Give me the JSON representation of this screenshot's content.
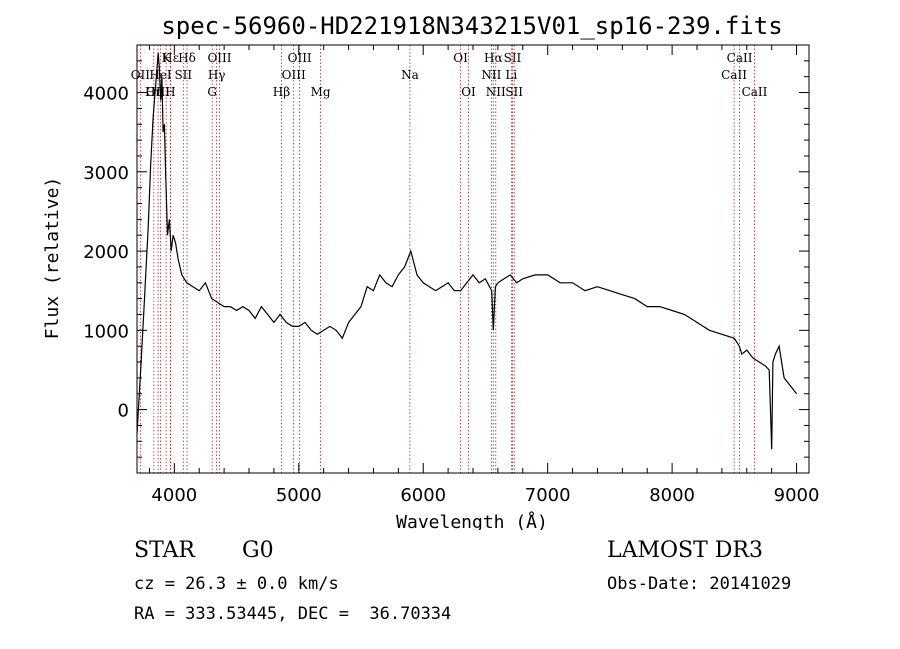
{
  "chart_data": {
    "type": "line",
    "title": "spec-56960-HD221918N343215V01_sp16-239.fits",
    "xlabel": "Wavelength (Å)",
    "ylabel": "Flux (relative)",
    "xlim": [
      3700,
      9100
    ],
    "ylim": [
      -800,
      4600
    ],
    "xticks": [
      4000,
      5000,
      6000,
      7000,
      8000,
      9000
    ],
    "yticks": [
      0,
      1000,
      2000,
      3000,
      4000
    ],
    "series": [
      {
        "x": [
          3700,
          3730,
          3760,
          3790,
          3810,
          3830,
          3850,
          3870,
          3880,
          3890,
          3900,
          3910,
          3920,
          3930,
          3945,
          3960,
          3975,
          3990,
          4010,
          4030,
          4060,
          4100,
          4150,
          4200,
          4250,
          4300,
          4350,
          4400,
          4450,
          4500,
          4550,
          4600,
          4650,
          4700,
          4750,
          4800,
          4850,
          4900,
          4950,
          5000,
          5050,
          5100,
          5150,
          5200,
          5250,
          5300,
          5350,
          5400,
          5450,
          5500,
          5550,
          5600,
          5650,
          5700,
          5750,
          5800,
          5850,
          5900,
          5950,
          6000,
          6050,
          6100,
          6150,
          6200,
          6250,
          6300,
          6350,
          6400,
          6450,
          6500,
          6550,
          6563,
          6580,
          6600,
          6650,
          6700,
          6750,
          6800,
          6900,
          7000,
          7100,
          7200,
          7300,
          7400,
          7500,
          7600,
          7700,
          7800,
          7900,
          8000,
          8100,
          8200,
          8300,
          8400,
          8500,
          8540,
          8560,
          8600,
          8650,
          8700,
          8750,
          8780,
          8800,
          8810,
          8830,
          8860,
          8900,
          8950,
          9000
        ],
        "y": [
          -300,
          500,
          1400,
          2300,
          3100,
          3700,
          4100,
          4500,
          4300,
          3900,
          4200,
          3500,
          3600,
          3000,
          2200,
          2400,
          2000,
          2200,
          2100,
          1900,
          1700,
          1600,
          1550,
          1500,
          1600,
          1400,
          1350,
          1300,
          1300,
          1250,
          1300,
          1250,
          1150,
          1300,
          1200,
          1100,
          1200,
          1100,
          1050,
          1050,
          1100,
          1000,
          950,
          1000,
          1050,
          1000,
          900,
          1100,
          1200,
          1300,
          1550,
          1500,
          1700,
          1600,
          1550,
          1700,
          1800,
          2000,
          1700,
          1600,
          1550,
          1500,
          1550,
          1600,
          1500,
          1500,
          1600,
          1700,
          1600,
          1650,
          1500,
          1000,
          1550,
          1600,
          1650,
          1700,
          1600,
          1650,
          1700,
          1700,
          1600,
          1600,
          1500,
          1550,
          1500,
          1450,
          1400,
          1300,
          1300,
          1250,
          1200,
          1100,
          1000,
          950,
          900,
          800,
          700,
          750,
          650,
          600,
          550,
          500,
          -500,
          600,
          700,
          800,
          400,
          300,
          200
        ]
      }
    ],
    "lines": [
      {
        "name": "Hε",
        "wl": 3970,
        "row": 0
      },
      {
        "name": "K",
        "wl": 3934,
        "row": 0
      },
      {
        "name": "Hδ",
        "wl": 4102,
        "row": 0
      },
      {
        "name": "OIII",
        "wl": 4363,
        "row": 0
      },
      {
        "name": "OIII",
        "wl": 5007,
        "row": 0
      },
      {
        "name": "OI",
        "wl": 6300,
        "row": 0
      },
      {
        "name": "Hα",
        "wl": 6563,
        "row": 0
      },
      {
        "name": "SII",
        "wl": 6717,
        "row": 0
      },
      {
        "name": "CaII",
        "wl": 8542,
        "row": 0
      },
      {
        "name": "OII",
        "wl": 3727,
        "row": 1
      },
      {
        "name": "HeI",
        "wl": 3889,
        "row": 1
      },
      {
        "name": "SII",
        "wl": 4072,
        "row": 1
      },
      {
        "name": "Hγ",
        "wl": 4340,
        "row": 1
      },
      {
        "name": "OIII",
        "wl": 4959,
        "row": 1
      },
      {
        "name": "Na",
        "wl": 5893,
        "row": 1
      },
      {
        "name": "NII",
        "wl": 6548,
        "row": 1
      },
      {
        "name": "Li",
        "wl": 6708,
        "row": 1
      },
      {
        "name": "CaII",
        "wl": 8498,
        "row": 1
      },
      {
        "name": "OIII",
        "wl": 3869,
        "row": 2
      },
      {
        "name": "Hη",
        "wl": 3835,
        "row": 2
      },
      {
        "name": "H",
        "wl": 3968,
        "row": 2
      },
      {
        "name": "G",
        "wl": 4304,
        "row": 2
      },
      {
        "name": "Hβ",
        "wl": 4861,
        "row": 2
      },
      {
        "name": "Mg",
        "wl": 5175,
        "row": 2
      },
      {
        "name": "OI",
        "wl": 6364,
        "row": 2
      },
      {
        "name": "NII",
        "wl": 6583,
        "row": 2
      },
      {
        "name": "SII",
        "wl": 6731,
        "row": 2
      },
      {
        "name": "CaII",
        "wl": 8662,
        "row": 2
      }
    ],
    "grid": false,
    "line_color": "#000000",
    "marker_color": "#b22222"
  },
  "info": {
    "class": "STAR",
    "subclass": "G0",
    "survey": "LAMOST DR3",
    "cz": "cz = 26.3 ± 0.0 km/s",
    "obs_date": "Obs-Date: 20141029",
    "radec": "RA = 333.53445, DEC =  36.70334"
  }
}
